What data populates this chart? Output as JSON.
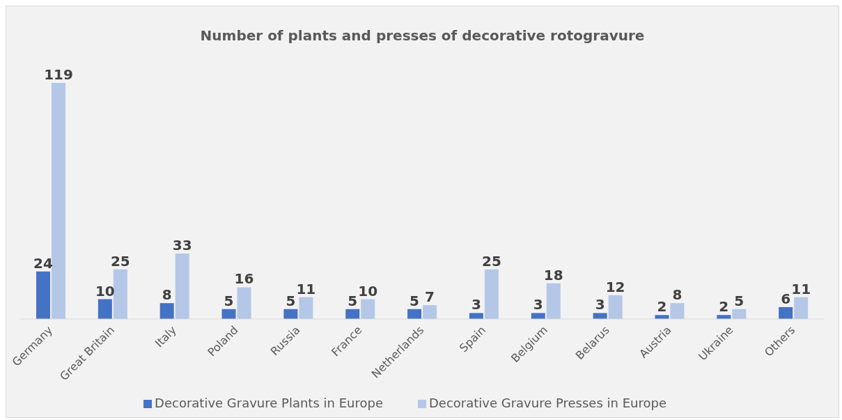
{
  "chart_data": {
    "type": "bar",
    "title": "Number of plants and presses of decorative rotogravure",
    "categories": [
      "Germany",
      "Great Britain",
      "Italy",
      "Poland",
      "Russia",
      "France",
      "Netherlands",
      "Spain",
      "Belgium",
      "Belarus",
      "Austria",
      "Ukraine",
      "Others"
    ],
    "series": [
      {
        "name": "Decorative Gravure Plants in Europe",
        "color": "#4472c4",
        "values": [
          24,
          10,
          8,
          5,
          5,
          5,
          5,
          3,
          3,
          3,
          2,
          2,
          6
        ]
      },
      {
        "name": "Decorative Gravure Presses in Europe",
        "color": "#b4c7e7",
        "values": [
          119,
          25,
          33,
          16,
          11,
          10,
          7,
          25,
          18,
          12,
          8,
          5,
          11
        ]
      }
    ],
    "data_labels": true,
    "legend": "bottom",
    "grid": false
  }
}
